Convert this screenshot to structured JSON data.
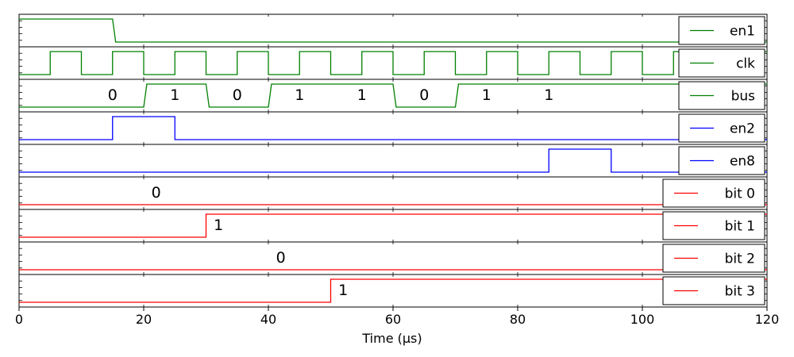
{
  "chart_data": {
    "type": "line",
    "title": "",
    "xlabel": "Time (µs)",
    "ylabel": "",
    "xlim": [
      0,
      120
    ],
    "x_ticks": [
      0,
      20,
      40,
      60,
      80,
      100,
      120
    ],
    "x_tick_labels": [
      "0",
      "20",
      "40",
      "60",
      "80",
      "100",
      "120"
    ],
    "grid": false,
    "legend_position": "right",
    "colors": {
      "green": "#008000",
      "blue": "#0000ff",
      "red": "#ff0000"
    },
    "series": [
      {
        "name": "en1",
        "color": "#008000",
        "legend_label": "en1",
        "x": [
          0,
          15,
          15.5,
          120
        ],
        "y": [
          1,
          1,
          0,
          0
        ],
        "annotations": []
      },
      {
        "name": "clk",
        "color": "#008000",
        "legend_label": "clk",
        "x": [
          0,
          5,
          5,
          10,
          10,
          15,
          15,
          20,
          20,
          25,
          25,
          30,
          30,
          35,
          35,
          40,
          40,
          45,
          45,
          50,
          50,
          55,
          55,
          60,
          60,
          65,
          65,
          70,
          70,
          75,
          75,
          80,
          80,
          85,
          85,
          90,
          90,
          95,
          95,
          100,
          100,
          105,
          105,
          110,
          110,
          115,
          115,
          120
        ],
        "y": [
          0,
          0,
          1,
          1,
          0,
          0,
          1,
          1,
          0,
          0,
          1,
          1,
          0,
          0,
          1,
          1,
          0,
          0,
          1,
          1,
          0,
          0,
          1,
          1,
          0,
          0,
          1,
          1,
          0,
          0,
          1,
          1,
          0,
          0,
          1,
          1,
          0,
          0,
          1,
          1,
          0,
          0,
          1,
          1,
          0,
          0,
          1,
          1
        ],
        "annotations": []
      },
      {
        "name": "bus",
        "color": "#008000",
        "legend_label": "bus",
        "x": [
          0,
          20,
          20.5,
          30,
          30.5,
          40,
          40.5,
          60,
          60.5,
          70,
          70.5,
          120
        ],
        "y": [
          0,
          0,
          1,
          1,
          0,
          0,
          1,
          1,
          0,
          0,
          1,
          1
        ],
        "annotations": [
          {
            "text": "0",
            "x": 15
          },
          {
            "text": "1",
            "x": 25
          },
          {
            "text": "0",
            "x": 35
          },
          {
            "text": "1",
            "x": 45
          },
          {
            "text": "1",
            "x": 55
          },
          {
            "text": "0",
            "x": 65
          },
          {
            "text": "1",
            "x": 75
          },
          {
            "text": "1",
            "x": 85
          }
        ]
      },
      {
        "name": "en2",
        "color": "#0000ff",
        "legend_label": "en2",
        "x": [
          0,
          15,
          15,
          25,
          25,
          120
        ],
        "y": [
          0,
          0,
          1,
          1,
          0,
          0
        ],
        "annotations": []
      },
      {
        "name": "en8",
        "color": "#0000ff",
        "legend_label": "en8",
        "x": [
          0,
          85,
          85,
          95,
          95,
          120
        ],
        "y": [
          0,
          0,
          1,
          1,
          0,
          0
        ],
        "annotations": []
      },
      {
        "name": "bit 0",
        "color": "#ff0000",
        "legend_label": "bit 0",
        "x": [
          0,
          120
        ],
        "y": [
          0,
          0
        ],
        "annotations": [
          {
            "text": "0",
            "x": 22
          }
        ]
      },
      {
        "name": "bit 1",
        "color": "#ff0000",
        "legend_label": "bit 1",
        "x": [
          0,
          30,
          30,
          120
        ],
        "y": [
          0,
          0,
          1,
          1
        ],
        "annotations": [
          {
            "text": "1",
            "x": 32
          }
        ]
      },
      {
        "name": "bit 2",
        "color": "#ff0000",
        "legend_label": "bit 2",
        "x": [
          0,
          120
        ],
        "y": [
          0,
          0
        ],
        "annotations": [
          {
            "text": "0",
            "x": 42
          }
        ]
      },
      {
        "name": "bit 3",
        "color": "#ff0000",
        "legend_label": "bit 3",
        "x": [
          0,
          50,
          50,
          120
        ],
        "y": [
          0,
          0,
          1,
          1
        ],
        "annotations": [
          {
            "text": "1",
            "x": 52
          }
        ]
      }
    ]
  }
}
